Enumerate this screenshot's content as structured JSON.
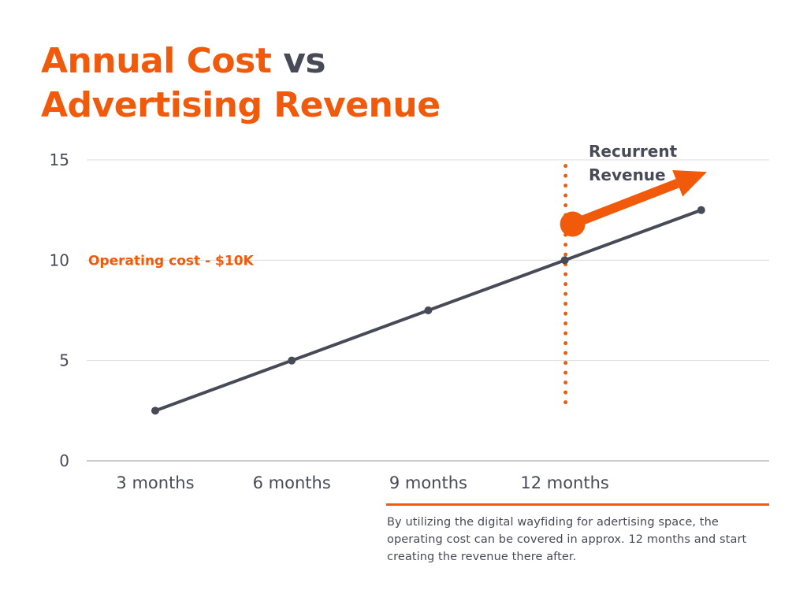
{
  "title": {
    "part1": "Annual Cost",
    "part2": "vs",
    "part3": "Advertising Revenue"
  },
  "colors": {
    "accent": "#f05a0a",
    "series": "#474a57",
    "grid": "#dcdcdc",
    "axis_text": "#474a57"
  },
  "chart_data": {
    "type": "line",
    "categories": [
      "3 months",
      "6 months",
      "9 months",
      "12 months",
      ""
    ],
    "series": [
      {
        "values": [
          2.5,
          5,
          7.5,
          10,
          12.5
        ]
      }
    ],
    "yticks": [
      "0",
      "5",
      "10",
      "15"
    ],
    "ylim": [
      0,
      15
    ],
    "grid": true,
    "annotations": {
      "operating_cost_label": "Operating cost - $10K",
      "breakeven_category": "12 months",
      "breakeven_marker_value": 11.8,
      "recurrent_label_line1": "Recurrent",
      "recurrent_label_line2": "Revenue"
    }
  },
  "footnote": "By utilizing the digital wayfiding for adertising space, the operating cost can be covered in approx. 12 months and start creating the revenue there after."
}
